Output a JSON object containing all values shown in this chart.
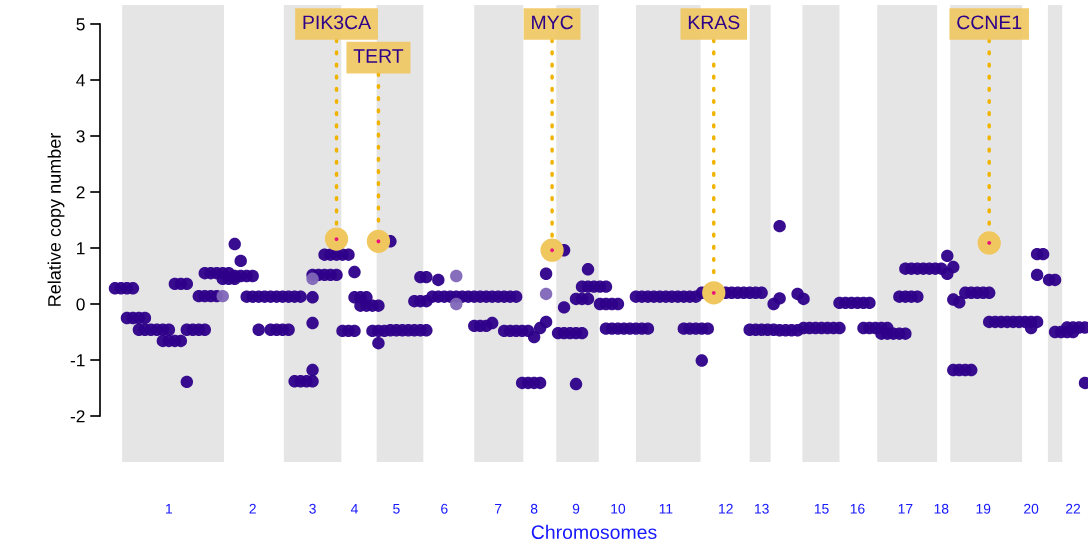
{
  "chart_data": {
    "type": "scatter",
    "xlabel": "Chromosomes",
    "ylabel": "Relative copy number",
    "ylim": [
      -2,
      5
    ],
    "yticks": [
      -2,
      -1,
      0,
      1,
      2,
      3,
      4,
      5
    ],
    "categories": [
      null,
      null,
      null,
      null,
      null,
      null,
      null,
      null,
      null,
      null,
      null,
      "1",
      null,
      null,
      null,
      null,
      null,
      null,
      null,
      null,
      null,
      null,
      null,
      null,
      null,
      "2",
      null,
      null,
      null,
      null,
      null,
      null,
      null,
      null,
      null,
      "3",
      null,
      null,
      null,
      null,
      null,
      null,
      "4",
      null,
      null,
      null,
      null,
      null,
      null,
      "5",
      null,
      null,
      null,
      null,
      null,
      null,
      null,
      "6",
      null,
      null,
      null,
      null,
      null,
      null,
      null,
      null,
      "7",
      null,
      null,
      null,
      null,
      null,
      "8",
      null,
      null,
      null,
      null,
      null,
      null,
      "9",
      null,
      null,
      null,
      null,
      null,
      null,
      "10",
      null,
      null,
      null,
      null,
      null,
      null,
      null,
      "11",
      null,
      null,
      null,
      null,
      null,
      null,
      null,
      null,
      null,
      "12",
      null,
      null,
      null,
      null,
      null,
      "13",
      null,
      null,
      null,
      null,
      null,
      null,
      null,
      null,
      null,
      "15",
      null,
      null,
      null,
      null,
      null,
      "16",
      null,
      null,
      null,
      null,
      null,
      null,
      null,
      "17",
      null,
      null,
      null,
      null,
      null,
      "18",
      null,
      null,
      null,
      null,
      null,
      null,
      "19",
      null,
      null,
      null,
      null,
      null,
      null,
      null,
      "20",
      null,
      null,
      null,
      null,
      null,
      null,
      "22",
      null,
      null
    ],
    "series": [
      {
        "color": "#2e0089",
        "values": [
          null,
          null,
          0.28,
          0.28,
          0.28,
          0.28,
          -0.46,
          -0.46,
          -0.46,
          -0.46,
          -0.46,
          -0.46,
          0.36,
          0.36,
          0.36,
          null,
          0.14,
          0.14,
          0.14,
          0.14,
          0.45,
          0.45,
          0.45,
          null,
          null,
          null,
          null,
          null,
          -0.46,
          -0.46,
          -0.46,
          -0.46,
          -1.38,
          -1.38,
          -1.38,
          -1.38,
          null,
          null,
          null,
          null,
          -0.48,
          -0.48,
          -0.48,
          -0.03,
          -0.03,
          -0.03,
          -0.03,
          null,
          -0.47,
          -0.47,
          -0.47,
          -0.47,
          -0.47,
          -0.47,
          -0.47,
          0.13,
          0.13,
          0.13,
          0.13,
          0.13,
          0.13,
          0.13,
          0.13,
          0.13,
          0.13,
          0.13,
          0.13,
          0.13,
          0.13,
          0.13,
          -1.41,
          -1.41,
          -1.41,
          -1.41,
          null,
          null,
          null,
          0.96,
          null,
          0.09,
          0.09,
          0.09,
          null,
          0.0,
          0.0,
          0.0,
          0.0,
          null,
          null,
          0.13,
          0.13,
          0.13,
          0.13,
          0.13,
          0.13,
          0.13,
          0.13,
          0.13,
          0.13,
          0.13,
          0.2,
          null,
          null,
          null,
          0.2,
          0.2,
          0.2,
          0.2,
          0.2,
          0.2,
          0.2,
          null,
          null,
          -0.47,
          -0.47,
          -0.47,
          -0.47,
          -0.43,
          -0.43,
          -0.43,
          -0.43,
          -0.43,
          -0.43,
          -0.43,
          null,
          null,
          null,
          -0.43,
          -0.43,
          -0.43,
          -0.43,
          -0.43,
          null,
          0.13,
          0.13,
          0.13,
          0.13,
          null,
          null,
          null,
          null,
          null,
          -1.18,
          -1.18,
          -1.18,
          -1.18,
          null,
          null,
          -0.32,
          -0.32,
          -0.32,
          -0.32,
          -0.32,
          -0.32,
          -0.32,
          -0.32,
          -0.32,
          null,
          0.43,
          0.43,
          null,
          null,
          null,
          null,
          null
        ]
      },
      {
        "color": "#2e0089",
        "values": [
          null,
          null,
          null,
          null,
          -0.25,
          -0.25,
          -0.25,
          -0.25,
          null,
          null,
          -0.66,
          -0.66,
          -0.66,
          -0.66,
          -0.46,
          -0.46,
          -0.46,
          -0.46,
          null,
          null,
          null,
          null,
          0.5,
          0.5,
          0.5,
          0.5,
          null,
          null,
          null,
          null,
          0.13,
          0.13,
          0.13,
          0.13,
          null,
          0.52,
          0.52,
          0.52,
          0.52,
          0.52,
          null,
          null,
          0.12,
          0.12,
          0.12,
          -0.48,
          -0.48,
          -0.48,
          null,
          null,
          null,
          null,
          0.05,
          0.05,
          0.05,
          null,
          null,
          null,
          null,
          null,
          null,
          null,
          -0.39,
          -0.39,
          -0.39,
          null,
          null,
          -0.48,
          -0.48,
          -0.48,
          -0.48,
          -0.48,
          null,
          null,
          null,
          null,
          -0.52,
          -0.52,
          -0.52,
          -0.52,
          -0.52,
          null,
          null,
          null,
          -0.44,
          -0.44,
          -0.44,
          -0.44,
          -0.44,
          -0.44,
          -0.44,
          -0.44,
          null,
          null,
          null,
          null,
          null,
          -0.44,
          -0.44,
          -0.44,
          -0.44,
          -0.44,
          null,
          null,
          null,
          null,
          null,
          null,
          -0.46,
          -0.46,
          -0.46,
          -0.46,
          -0.46,
          null,
          null,
          null,
          null,
          null,
          null,
          null,
          null,
          null,
          null,
          0.02,
          0.02,
          0.02,
          0.02,
          0.02,
          0.02,
          null,
          -0.53,
          -0.53,
          -0.53,
          -0.53,
          -0.53,
          null,
          null,
          null,
          null,
          null,
          null,
          null,
          null,
          null,
          0.2,
          0.2,
          0.2,
          0.2,
          0.2,
          null,
          null,
          null,
          null,
          null,
          null,
          null,
          0.89,
          0.89,
          null,
          -0.5,
          -0.5,
          -0.5,
          -0.5,
          null,
          null
        ]
      },
      {
        "color": "#2e0089",
        "values": [
          null,
          null,
          null,
          null,
          null,
          null,
          null,
          null,
          null,
          null,
          null,
          null,
          null,
          null,
          null,
          null,
          null,
          0.55,
          0.55,
          0.55,
          0.55,
          0.55,
          null,
          null,
          0.13,
          0.13,
          0.13,
          0.13,
          0.13,
          0.13,
          null,
          null,
          null,
          null,
          null,
          -1.18,
          null,
          0.88,
          0.88,
          0.88,
          0.88,
          0.88,
          null,
          null,
          null,
          null,
          null,
          null,
          1.12,
          null,
          null,
          null,
          null,
          0.48,
          0.48,
          null,
          null,
          null,
          null,
          null,
          null,
          null,
          null,
          null,
          null,
          null,
          null,
          null,
          null,
          null,
          null,
          null,
          null,
          null,
          null,
          null,
          null,
          null,
          null,
          null,
          0.31,
          0.31,
          0.31,
          0.31,
          0.31,
          null,
          null,
          null,
          null,
          null,
          null,
          null,
          null,
          null,
          null,
          null,
          null,
          null,
          null,
          null,
          null,
          null,
          null,
          null,
          null,
          null,
          null,
          null,
          null,
          null,
          null,
          null,
          null,
          null,
          null,
          null,
          null,
          null,
          null,
          null,
          null,
          null,
          null,
          null,
          null,
          null,
          null,
          null,
          null,
          null,
          null,
          null,
          null,
          null,
          0.63,
          0.63,
          0.63,
          0.63,
          0.63,
          0.63,
          0.63,
          null,
          null,
          null,
          null,
          null,
          null,
          null,
          null,
          null,
          null,
          null,
          null,
          null,
          null,
          null,
          null,
          null,
          null,
          null,
          null,
          -0.42,
          -0.42,
          -0.42,
          -0.42
        ]
      },
      {
        "color": "#2e0089",
        "values": [
          null,
          null,
          null,
          null,
          null,
          null,
          null,
          null,
          null,
          null,
          null,
          null,
          null,
          null,
          -1.39,
          null,
          null,
          null,
          null,
          null,
          null,
          null,
          1.07,
          0.77,
          null,
          null,
          -0.46,
          null,
          null,
          null,
          null,
          null,
          null,
          null,
          null,
          -0.34,
          null,
          null,
          null,
          null,
          null,
          null,
          0.57,
          null,
          null,
          null,
          -0.7,
          null,
          null,
          null,
          null,
          null,
          null,
          null,
          null,
          null,
          0.43,
          null,
          null,
          null,
          null,
          null,
          null,
          null,
          null,
          -0.34,
          null,
          null,
          null,
          null,
          null,
          null,
          -0.59,
          -0.43,
          -0.32,
          null,
          null,
          -0.06,
          null,
          -1.43,
          null,
          0.62,
          null,
          null,
          null,
          null,
          null,
          null,
          null,
          null,
          null,
          null,
          null,
          null,
          null,
          null,
          null,
          null,
          null,
          null,
          -1.01,
          null,
          null,
          null,
          null,
          null,
          null,
          null,
          null,
          null,
          null,
          null,
          0.0,
          1.39,
          null,
          null,
          0.18,
          0.09,
          null,
          null,
          null,
          null,
          null,
          null,
          null,
          null,
          null,
          null,
          null,
          null,
          null,
          null,
          null,
          null,
          null,
          null,
          null,
          null,
          null,
          null,
          null,
          0.86,
          0.66,
          0.03,
          null,
          null,
          null,
          null,
          null,
          null,
          null,
          null,
          null,
          null,
          null,
          -0.43,
          0.52,
          null,
          null,
          null,
          null,
          null,
          null,
          null,
          -1.41
        ]
      },
      {
        "color": "#2e0089",
        "values": [
          null,
          null,
          null,
          null,
          null,
          null,
          null,
          null,
          null,
          null,
          null,
          null,
          null,
          null,
          null,
          null,
          null,
          null,
          null,
          null,
          null,
          null,
          null,
          null,
          null,
          null,
          null,
          null,
          null,
          null,
          null,
          null,
          null,
          null,
          null,
          0.12,
          null,
          null,
          null,
          null,
          null,
          null,
          null,
          null,
          null,
          null,
          null,
          null,
          null,
          null,
          null,
          null,
          null,
          null,
          null,
          null,
          null,
          null,
          null,
          null,
          null,
          null,
          null,
          null,
          null,
          null,
          null,
          null,
          null,
          null,
          null,
          null,
          null,
          null,
          0.54,
          null,
          null,
          null,
          null,
          null,
          null,
          null,
          null,
          null,
          null,
          null,
          null,
          null,
          null,
          null,
          null,
          null,
          null,
          null,
          null,
          null,
          null,
          null,
          null,
          null,
          null,
          null,
          null,
          null,
          null,
          null,
          null,
          null,
          null,
          null,
          null,
          null,
          null,
          0.1,
          null,
          null,
          null,
          null,
          null,
          null,
          null,
          null,
          null,
          null,
          null,
          null,
          null,
          null,
          null,
          null,
          null,
          null,
          null,
          null,
          null,
          null,
          null,
          null,
          null,
          null,
          null,
          0.54,
          0.08,
          null,
          null,
          null,
          null,
          null,
          null,
          null,
          null,
          null,
          null,
          null,
          null,
          null,
          null,
          null,
          null,
          null,
          null,
          null,
          null,
          null,
          null
        ]
      },
      {
        "color": "#7f66b8",
        "values": [
          null,
          null,
          null,
          null,
          null,
          null,
          null,
          null,
          null,
          null,
          null,
          null,
          null,
          null,
          null,
          null,
          null,
          null,
          null,
          null,
          0.14,
          null,
          null,
          null,
          null,
          null,
          null,
          null,
          null,
          null,
          null,
          null,
          null,
          null,
          null,
          0.45,
          null,
          null,
          null,
          null,
          null,
          null,
          null,
          null,
          null,
          null,
          null,
          null,
          null,
          null,
          null,
          null,
          null,
          null,
          null,
          null,
          null,
          null,
          null,
          0.5,
          null,
          null,
          null,
          null,
          null,
          null,
          null,
          null,
          null,
          null,
          null,
          null,
          null,
          null,
          0.18,
          null,
          null,
          null,
          null,
          null,
          null,
          null,
          null,
          null,
          null,
          null,
          null,
          null,
          null,
          null,
          null,
          null,
          null,
          null,
          null,
          null,
          null,
          null,
          null,
          null,
          null,
          null,
          null,
          null,
          null,
          null,
          null,
          null,
          null,
          null,
          null,
          null,
          null,
          null,
          null,
          null,
          null,
          null,
          null,
          null,
          null,
          null,
          null,
          null,
          null,
          null,
          null,
          null,
          null,
          null,
          null,
          null,
          null,
          null,
          null,
          null,
          null,
          null,
          null,
          null,
          null,
          null,
          null,
          null,
          null,
          null,
          null,
          null,
          null,
          null,
          null,
          null,
          null,
          null,
          null,
          null,
          null,
          null,
          null,
          null,
          null,
          null,
          null,
          null,
          null
        ]
      },
      {
        "color": "#7f66b8",
        "values": [
          null,
          null,
          null,
          null,
          null,
          null,
          null,
          null,
          null,
          null,
          null,
          null,
          null,
          null,
          null,
          null,
          null,
          null,
          null,
          null,
          null,
          null,
          null,
          null,
          null,
          null,
          null,
          null,
          null,
          null,
          null,
          null,
          null,
          null,
          null,
          null,
          null,
          null,
          null,
          null,
          null,
          null,
          null,
          null,
          null,
          null,
          null,
          null,
          null,
          null,
          null,
          null,
          null,
          null,
          null,
          null,
          null,
          null,
          null,
          0.0,
          null,
          null,
          null,
          null,
          null,
          null,
          null,
          null,
          null,
          null,
          null,
          null,
          null,
          null,
          null,
          null,
          null,
          null,
          null,
          null,
          null,
          null,
          null,
          null,
          null,
          null,
          null,
          null,
          null,
          null,
          null,
          null,
          null,
          null,
          null,
          null,
          null,
          null,
          null,
          null,
          null,
          null,
          null,
          null,
          null,
          null,
          null,
          null,
          null,
          null,
          null,
          null,
          null,
          null,
          null,
          null,
          null,
          null,
          null,
          null,
          null,
          null,
          null,
          null,
          null,
          null,
          null,
          null,
          null,
          null,
          null,
          null,
          null,
          null,
          null,
          null,
          null,
          null,
          null,
          null,
          null,
          null,
          null,
          null,
          null,
          null,
          null,
          null,
          null,
          null,
          null,
          null,
          null,
          null,
          null,
          null,
          null,
          null,
          null,
          null,
          null,
          null,
          null,
          null,
          null
        ]
      },
      {
        "color": "#e8127c",
        "values": [
          null,
          null,
          null,
          null,
          null,
          null,
          null,
          null,
          null,
          null,
          null,
          null,
          null,
          null,
          null,
          null,
          null,
          null,
          null,
          null,
          null,
          null,
          null,
          null,
          null,
          null,
          null,
          null,
          null,
          null,
          null,
          null,
          null,
          null,
          null,
          null,
          null,
          null,
          null,
          1.16,
          null,
          null,
          null,
          null,
          null,
          null,
          1.12,
          null,
          null,
          null,
          null,
          null,
          null,
          null,
          null,
          null,
          null,
          null,
          null,
          null,
          null,
          null,
          null,
          null,
          null,
          null,
          null,
          null,
          null,
          null,
          null,
          null,
          null,
          null,
          null,
          0.96,
          null,
          null,
          null,
          null,
          null,
          null,
          null,
          null,
          null,
          null,
          null,
          null,
          null,
          null,
          null,
          null,
          null,
          null,
          null,
          null,
          null,
          null,
          null,
          null,
          null,
          null,
          0.2,
          null,
          null,
          null,
          null,
          null,
          null,
          null,
          null,
          null,
          null,
          null,
          null,
          null,
          null,
          null,
          null,
          null,
          null,
          null,
          null,
          null,
          null,
          null,
          null,
          null,
          null,
          null,
          null,
          null,
          null,
          null,
          null,
          null,
          null,
          null,
          null,
          null,
          null,
          null,
          null,
          null,
          null,
          null,
          null,
          null,
          1.09,
          null,
          null,
          null,
          null,
          null,
          null,
          null,
          null,
          null,
          null,
          null,
          null,
          null,
          null,
          null,
          null
        ]
      }
    ],
    "annotations": [
      "PIK3CA",
      "TERT",
      "MYC",
      "KRAS",
      "CCNE1"
    ]
  }
}
